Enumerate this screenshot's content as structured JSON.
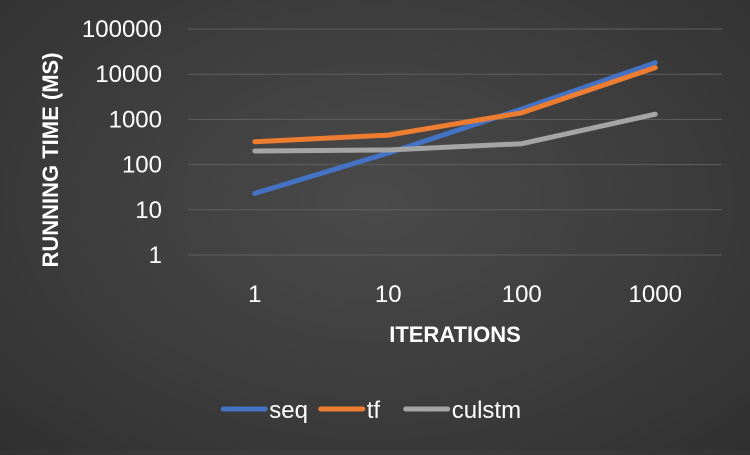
{
  "chart_data": {
    "type": "line",
    "xlabel": "ITERATIONS",
    "ylabel": "RUNNING TIME (MS)",
    "x_scale": "categorical",
    "y_scale": "log",
    "categories": [
      "1",
      "10",
      "100",
      "1000"
    ],
    "y_ticks": [
      "1",
      "10",
      "100",
      "1000",
      "10000",
      "100000"
    ],
    "ylim": [
      1,
      100000
    ],
    "grid": true,
    "legend_position": "bottom",
    "series": [
      {
        "name": "seq",
        "color": "#4472c4",
        "values": [
          23,
          180,
          1700,
          18000
        ]
      },
      {
        "name": "tf",
        "color": "#ed7d31",
        "values": [
          320,
          450,
          1400,
          14000
        ]
      },
      {
        "name": "culstm",
        "color": "#a5a5a5",
        "values": [
          200,
          210,
          290,
          1300
        ]
      }
    ]
  }
}
